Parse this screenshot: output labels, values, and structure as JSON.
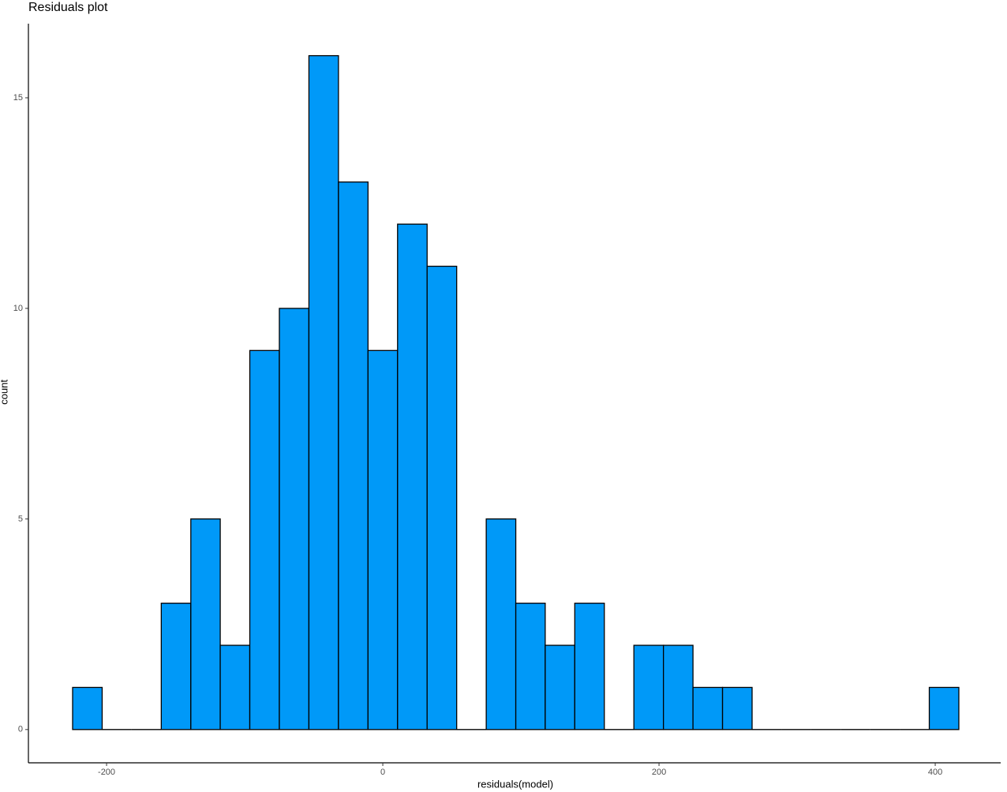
{
  "chart_data": {
    "type": "histogram",
    "title": "Residuals plot",
    "x_label": "residuals(model)",
    "y_label": "count",
    "bins": [
      -224.6,
      -203.2,
      -181.8,
      -160.4,
      -139.0,
      -117.7,
      -96.3,
      -74.9,
      -53.5,
      -32.1,
      -10.7,
      10.7,
      32.1,
      53.5,
      74.9,
      96.3,
      117.6,
      139.0,
      160.4,
      181.8,
      203.2,
      224.6,
      246.0,
      267.4,
      288.8,
      310.2,
      331.5,
      352.9,
      374.3,
      395.7,
      417.1
    ],
    "counts": [
      1,
      0,
      0,
      3,
      5,
      2,
      9,
      10,
      16,
      13,
      9,
      12,
      11,
      0,
      5,
      3,
      2,
      3,
      0,
      2,
      2,
      1,
      1,
      0,
      0,
      0,
      0,
      0,
      0,
      1
    ],
    "color": "#0099f8",
    "edge_color": "#000000",
    "xlim": [
      -256.6,
      447.4
    ],
    "xticks": [
      -200,
      0,
      200,
      400
    ],
    "ylim": [
      -0.79,
      16.76
    ],
    "yticks": [
      0,
      5,
      10,
      15
    ],
    "grid": false
  }
}
